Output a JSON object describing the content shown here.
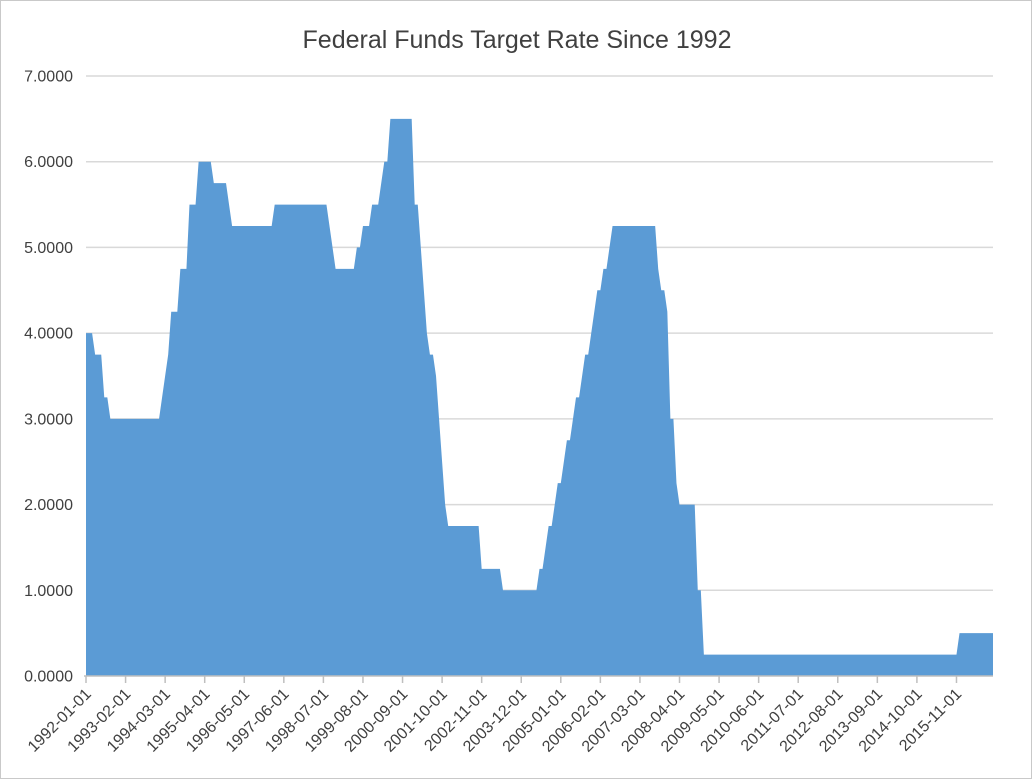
{
  "chart_data": {
    "type": "area",
    "title": "Federal Funds Target Rate Since 1992",
    "x_start": "1992-01-01",
    "x_end": "2016-11-01",
    "frequency": "monthly",
    "tick_every_n_months": 13,
    "x_tick_labels": [
      "1992-01-01",
      "1993-02-01",
      "1994-03-01",
      "1995-04-01",
      "1996-05-01",
      "1997-06-01",
      "1998-07-01",
      "1999-08-01",
      "2000-09-01",
      "2001-10-01",
      "2002-11-01",
      "2003-12-01",
      "2005-01-01",
      "2006-02-01",
      "2007-03-01",
      "2008-04-01",
      "2009-05-01",
      "2010-06-01",
      "2011-07-01",
      "2012-08-01",
      "2013-09-01",
      "2014-10-01",
      "2015-11-01"
    ],
    "y_tick_labels": [
      "0.0000",
      "1.0000",
      "2.0000",
      "3.0000",
      "4.0000",
      "5.0000",
      "6.0000",
      "7.0000"
    ],
    "ylim": [
      0,
      7
    ],
    "grid": "horizontal",
    "legend": "none",
    "values": [
      4,
      4,
      4,
      3.75,
      3.75,
      3.75,
      3.25,
      3.25,
      3,
      3,
      3,
      3,
      3,
      3,
      3,
      3,
      3,
      3,
      3,
      3,
      3,
      3,
      3,
      3,
      3,
      3.25,
      3.5,
      3.75,
      4.25,
      4.25,
      4.25,
      4.75,
      4.75,
      4.75,
      5.5,
      5.5,
      5.5,
      6,
      6,
      6,
      6,
      6,
      5.75,
      5.75,
      5.75,
      5.75,
      5.75,
      5.5,
      5.25,
      5.25,
      5.25,
      5.25,
      5.25,
      5.25,
      5.25,
      5.25,
      5.25,
      5.25,
      5.25,
      5.25,
      5.25,
      5.25,
      5.5,
      5.5,
      5.5,
      5.5,
      5.5,
      5.5,
      5.5,
      5.5,
      5.5,
      5.5,
      5.5,
      5.5,
      5.5,
      5.5,
      5.5,
      5.5,
      5.5,
      5.5,
      5.25,
      5,
      4.75,
      4.75,
      4.75,
      4.75,
      4.75,
      4.75,
      4.75,
      5,
      5,
      5.25,
      5.25,
      5.25,
      5.5,
      5.5,
      5.5,
      5.75,
      6,
      6,
      6.5,
      6.5,
      6.5,
      6.5,
      6.5,
      6.5,
      6.5,
      6.5,
      5.5,
      5.5,
      5,
      4.5,
      4,
      3.75,
      3.75,
      3.5,
      3,
      2.5,
      2,
      1.75,
      1.75,
      1.75,
      1.75,
      1.75,
      1.75,
      1.75,
      1.75,
      1.75,
      1.75,
      1.75,
      1.25,
      1.25,
      1.25,
      1.25,
      1.25,
      1.25,
      1.25,
      1,
      1,
      1,
      1,
      1,
      1,
      1,
      1,
      1,
      1,
      1,
      1,
      1.25,
      1.25,
      1.5,
      1.75,
      1.75,
      2,
      2.25,
      2.25,
      2.5,
      2.75,
      2.75,
      3,
      3.25,
      3.25,
      3.5,
      3.75,
      3.75,
      4,
      4.25,
      4.5,
      4.5,
      4.75,
      4.75,
      5,
      5.25,
      5.25,
      5.25,
      5.25,
      5.25,
      5.25,
      5.25,
      5.25,
      5.25,
      5.25,
      5.25,
      5.25,
      5.25,
      5.25,
      5.25,
      4.75,
      4.5,
      4.5,
      4.25,
      3,
      3,
      2.25,
      2,
      2,
      2,
      2,
      2,
      2,
      1,
      1,
      0.25,
      0.25,
      0.25,
      0.25,
      0.25,
      0.25,
      0.25,
      0.25,
      0.25,
      0.25,
      0.25,
      0.25,
      0.25,
      0.25,
      0.25,
      0.25,
      0.25,
      0.25,
      0.25,
      0.25,
      0.25,
      0.25,
      0.25,
      0.25,
      0.25,
      0.25,
      0.25,
      0.25,
      0.25,
      0.25,
      0.25,
      0.25,
      0.25,
      0.25,
      0.25,
      0.25,
      0.25,
      0.25,
      0.25,
      0.25,
      0.25,
      0.25,
      0.25,
      0.25,
      0.25,
      0.25,
      0.25,
      0.25,
      0.25,
      0.25,
      0.25,
      0.25,
      0.25,
      0.25,
      0.25,
      0.25,
      0.25,
      0.25,
      0.25,
      0.25,
      0.25,
      0.25,
      0.25,
      0.25,
      0.25,
      0.25,
      0.25,
      0.25,
      0.25,
      0.25,
      0.25,
      0.25,
      0.25,
      0.25,
      0.25,
      0.25,
      0.25,
      0.25,
      0.25,
      0.25,
      0.25,
      0.25,
      0.25,
      0.25,
      0.5,
      0.5,
      0.5,
      0.5,
      0.5,
      0.5,
      0.5,
      0.5,
      0.5,
      0.5,
      0.5,
      0.5
    ],
    "colors": {
      "area": "#5B9BD5",
      "gridline": "#D9D9D9",
      "axis": "#BFBFBF",
      "text": "#404040",
      "frame": "#C9C9C9",
      "background": "#FFFFFF"
    }
  }
}
